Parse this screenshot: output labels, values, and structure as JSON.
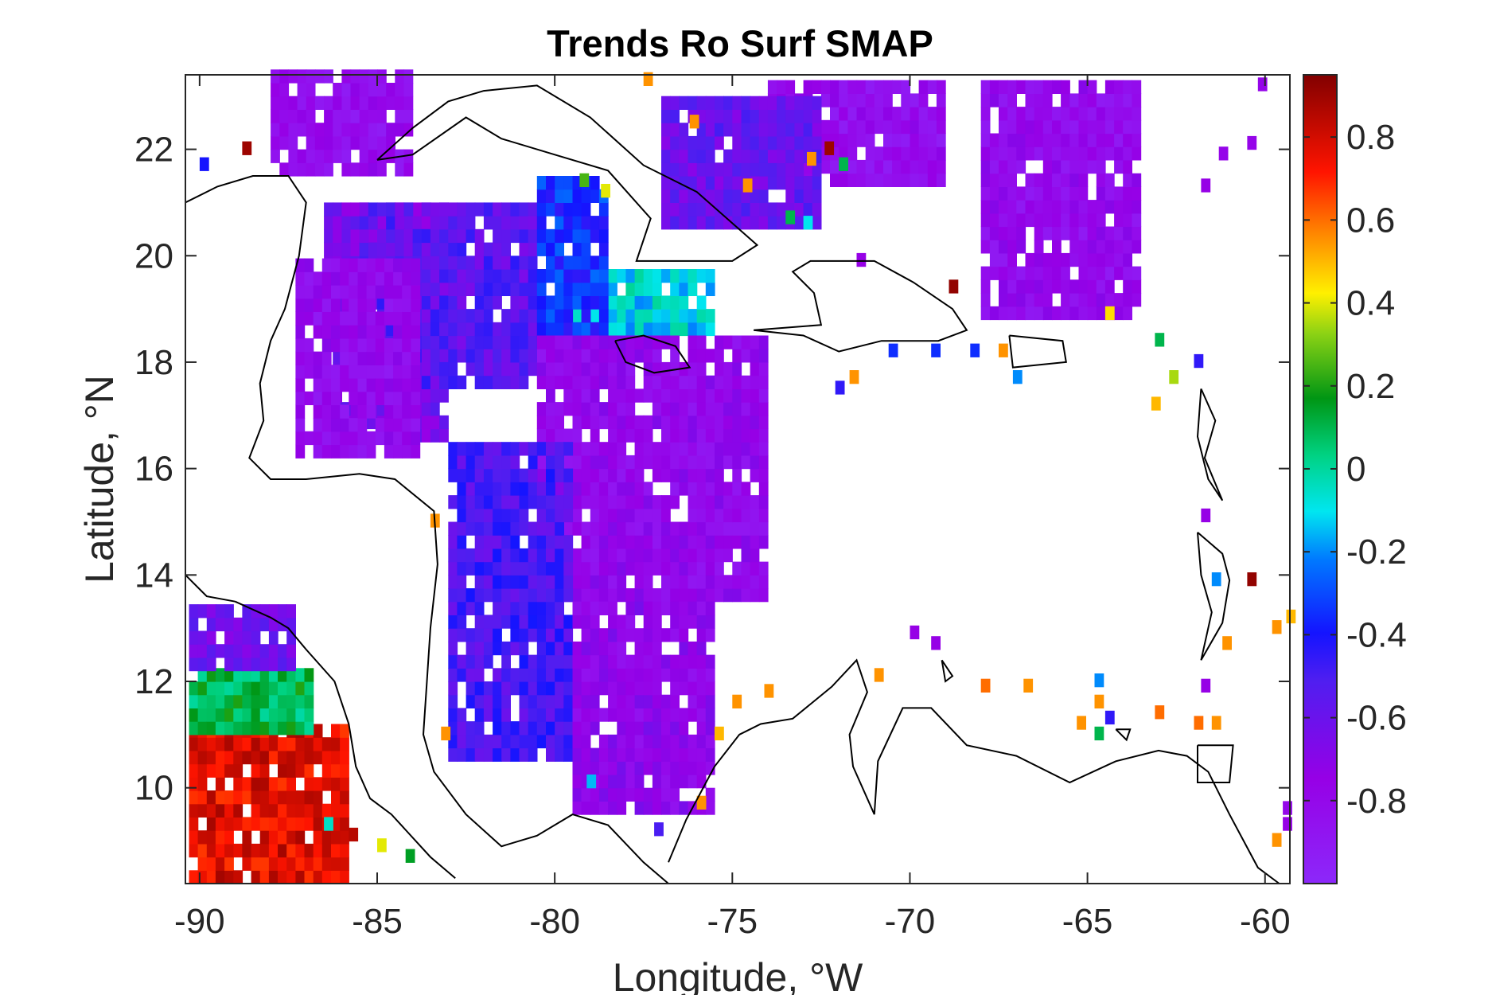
{
  "chart_data": {
    "type": "heatmap",
    "title": "Trends Ro Surf SMAP",
    "xlabel": "Longitude, °W",
    "ylabel": "Latitude, °N",
    "xlim": [
      -90.4,
      -59.3
    ],
    "ylim": [
      8.2,
      23.4
    ],
    "xticks": [
      {
        "v": -90,
        "label": "-90"
      },
      {
        "v": -85,
        "label": "-85"
      },
      {
        "v": -80,
        "label": "-80"
      },
      {
        "v": -75,
        "label": "-75"
      },
      {
        "v": -70,
        "label": "-70"
      },
      {
        "v": -65,
        "label": "-65"
      },
      {
        "v": -60,
        "label": "-60"
      }
    ],
    "yticks": [
      {
        "v": 10,
        "label": "10"
      },
      {
        "v": 12,
        "label": "12"
      },
      {
        "v": 14,
        "label": "14"
      },
      {
        "v": 16,
        "label": "16"
      },
      {
        "v": 18,
        "label": "18"
      },
      {
        "v": 20,
        "label": "20"
      },
      {
        "v": 22,
        "label": "22"
      }
    ],
    "colorbar": {
      "colormap": "jet-with-purple",
      "range": [
        -1.0,
        0.95
      ],
      "ticks": [
        {
          "v": 0.8,
          "label": "0.8"
        },
        {
          "v": 0.6,
          "label": "0.6"
        },
        {
          "v": 0.4,
          "label": "0.4"
        },
        {
          "v": 0.2,
          "label": "0.2"
        },
        {
          "v": 0,
          "label": "0"
        },
        {
          "v": -0.2,
          "label": "-0.2"
        },
        {
          "v": -0.4,
          "label": "-0.4"
        },
        {
          "v": -0.6,
          "label": "-0.6"
        },
        {
          "v": -0.8,
          "label": "-0.8"
        }
      ]
    },
    "grid": false,
    "cell_size_deg": 0.25,
    "regions": [
      {
        "name": "north-caribbean-band",
        "lon": [
          -88.0,
          -84.0
        ],
        "lat": [
          21.5,
          23.3
        ],
        "value": -0.82
      },
      {
        "name": "cayman-basin-west",
        "lon": [
          -86.5,
          -83.0
        ],
        "lat": [
          16.5,
          21.0
        ],
        "value": -0.65
      },
      {
        "name": "cayman-basin-core",
        "lon": [
          -85.5,
          -80.5
        ],
        "lat": [
          17.5,
          21.0
        ],
        "value": -0.55
      },
      {
        "name": "yucatan-shelf",
        "lon": [
          -87.3,
          -84.0
        ],
        "lat": [
          16.2,
          19.8
        ],
        "value": -0.8
      },
      {
        "name": "windward-passage",
        "lon": [
          -79.5,
          -75.5
        ],
        "lat": [
          18.5,
          19.6
        ],
        "value": -0.1
      },
      {
        "name": "south-of-cuba",
        "lon": [
          -80.5,
          -78.5
        ],
        "lat": [
          18.0,
          21.3
        ],
        "value": -0.35
      },
      {
        "name": "central-caribbean",
        "lon": [
          -80.5,
          -74.0
        ],
        "lat": [
          13.5,
          18.5
        ],
        "value": -0.78
      },
      {
        "name": "nicaragua-rise",
        "lon": [
          -83.0,
          -79.5
        ],
        "lat": [
          10.5,
          16.5
        ],
        "value": -0.5
      },
      {
        "name": "colombian-basin",
        "lon": [
          -79.5,
          -75.5
        ],
        "lat": [
          9.5,
          13.5
        ],
        "value": -0.75
      },
      {
        "name": "atlantic-north-a",
        "lon": [
          -74.0,
          -69.0
        ],
        "lat": [
          21.3,
          23.3
        ],
        "value": -0.82
      },
      {
        "name": "atlantic-north-b",
        "lon": [
          -68.0,
          -63.5
        ],
        "lat": [
          18.8,
          23.3
        ],
        "value": -0.8
      },
      {
        "name": "bahamas-strip",
        "lon": [
          -77.0,
          -72.5
        ],
        "lat": [
          20.5,
          22.8
        ],
        "value": -0.6
      },
      {
        "name": "pacific-coast-hot",
        "lon": [
          -90.3,
          -86.0
        ],
        "lat": [
          8.2,
          11.0
        ],
        "value": 0.78
      },
      {
        "name": "pacific-coast-mid",
        "lon": [
          -90.3,
          -87.0
        ],
        "lat": [
          11.0,
          12.2
        ],
        "value": 0.1
      },
      {
        "name": "pacific-coast-cool",
        "lon": [
          -90.3,
          -87.5
        ],
        "lat": [
          12.2,
          13.4
        ],
        "value": -0.6
      }
    ],
    "scattered_cells": [
      {
        "lon": -88.8,
        "lat": 21.9,
        "value": 0.9
      },
      {
        "lon": -90.0,
        "lat": 21.6,
        "value": -0.4
      },
      {
        "lon": -68.9,
        "lat": 19.3,
        "value": 0.92
      },
      {
        "lon": -64.5,
        "lat": 18.8,
        "value": 0.45
      },
      {
        "lon": -63.1,
        "lat": 18.3,
        "value": 0.1
      },
      {
        "lon": -62.0,
        "lat": 17.9,
        "value": -0.45
      },
      {
        "lon": -62.7,
        "lat": 17.6,
        "value": 0.35
      },
      {
        "lon": -63.2,
        "lat": 17.1,
        "value": 0.5
      },
      {
        "lon": -61.5,
        "lat": 13.8,
        "value": -0.2
      },
      {
        "lon": -60.5,
        "lat": 13.8,
        "value": 0.92
      },
      {
        "lon": -61.2,
        "lat": 12.6,
        "value": 0.55
      },
      {
        "lon": -59.8,
        "lat": 12.9,
        "value": 0.55
      },
      {
        "lon": -59.4,
        "lat": 13.1,
        "value": 0.5
      },
      {
        "lon": -64.8,
        "lat": 11.9,
        "value": -0.2
      },
      {
        "lon": -64.8,
        "lat": 11.5,
        "value": 0.55
      },
      {
        "lon": -64.8,
        "lat": 10.9,
        "value": 0.1
      },
      {
        "lon": -64.5,
        "lat": 11.2,
        "value": -0.45
      },
      {
        "lon": -65.3,
        "lat": 11.1,
        "value": 0.55
      },
      {
        "lon": -63.1,
        "lat": 11.3,
        "value": 0.6
      },
      {
        "lon": -62.0,
        "lat": 11.1,
        "value": 0.6
      },
      {
        "lon": -61.5,
        "lat": 11.1,
        "value": 0.55
      },
      {
        "lon": -61.8,
        "lat": 11.8,
        "value": -0.75
      },
      {
        "lon": -66.8,
        "lat": 11.8,
        "value": 0.55
      },
      {
        "lon": -68.0,
        "lat": 11.8,
        "value": 0.6
      },
      {
        "lon": -71.0,
        "lat": 12.0,
        "value": 0.55
      },
      {
        "lon": -74.1,
        "lat": 11.7,
        "value": 0.55
      },
      {
        "lon": -75.0,
        "lat": 11.5,
        "value": 0.55
      },
      {
        "lon": -75.5,
        "lat": 10.9,
        "value": 0.5
      },
      {
        "lon": -76.0,
        "lat": 9.6,
        "value": 0.55
      },
      {
        "lon": -77.2,
        "lat": 9.1,
        "value": -0.5
      },
      {
        "lon": -83.2,
        "lat": 10.9,
        "value": 0.55
      },
      {
        "lon": -79.1,
        "lat": 10.0,
        "value": -0.15
      },
      {
        "lon": -83.5,
        "lat": 14.9,
        "value": 0.55
      },
      {
        "lon": -70.0,
        "lat": 12.8,
        "value": -0.75
      },
      {
        "lon": -69.4,
        "lat": 12.6,
        "value": -0.75
      },
      {
        "lon": -67.5,
        "lat": 18.1,
        "value": 0.55
      },
      {
        "lon": -67.1,
        "lat": 17.6,
        "value": -0.2
      },
      {
        "lon": -68.3,
        "lat": 18.1,
        "value": -0.35
      },
      {
        "lon": -69.4,
        "lat": 18.1,
        "value": -0.35
      },
      {
        "lon": -70.6,
        "lat": 18.1,
        "value": -0.35
      },
      {
        "lon": -71.7,
        "lat": 17.6,
        "value": 0.55
      },
      {
        "lon": -72.1,
        "lat": 17.4,
        "value": -0.45
      },
      {
        "lon": -61.8,
        "lat": 15.0,
        "value": -0.75
      },
      {
        "lon": -86.5,
        "lat": 9.2,
        "value": -0.05
      },
      {
        "lon": -85.8,
        "lat": 9.0,
        "value": 0.85
      },
      {
        "lon": -85.0,
        "lat": 8.8,
        "value": 0.4
      },
      {
        "lon": -84.2,
        "lat": 8.6,
        "value": 0.15
      },
      {
        "lon": -59.8,
        "lat": 8.9,
        "value": 0.55
      },
      {
        "lon": -59.5,
        "lat": 9.5,
        "value": -0.8
      },
      {
        "lon": -59.5,
        "lat": 9.2,
        "value": -0.75
      },
      {
        "lon": -60.5,
        "lat": 22.0,
        "value": -0.78
      },
      {
        "lon": -61.3,
        "lat": 21.8,
        "value": -0.78
      },
      {
        "lon": -61.8,
        "lat": 21.2,
        "value": -0.75
      },
      {
        "lon": -60.2,
        "lat": 23.1,
        "value": -0.78
      },
      {
        "lon": -71.5,
        "lat": 19.8,
        "value": -0.75
      },
      {
        "lon": -72.9,
        "lat": 21.7,
        "value": 0.55
      },
      {
        "lon": -72.0,
        "lat": 21.6,
        "value": 0.1
      },
      {
        "lon": -72.4,
        "lat": 21.9,
        "value": 0.9
      },
      {
        "lon": -73.0,
        "lat": 20.5,
        "value": -0.1
      },
      {
        "lon": -73.5,
        "lat": 20.6,
        "value": 0.1
      },
      {
        "lon": -74.7,
        "lat": 21.2,
        "value": 0.55
      },
      {
        "lon": -76.2,
        "lat": 22.4,
        "value": 0.55
      },
      {
        "lon": -77.5,
        "lat": 23.2,
        "value": 0.55
      },
      {
        "lon": -79.3,
        "lat": 21.3,
        "value": 0.25
      },
      {
        "lon": -78.7,
        "lat": 21.1,
        "value": 0.4
      }
    ]
  }
}
